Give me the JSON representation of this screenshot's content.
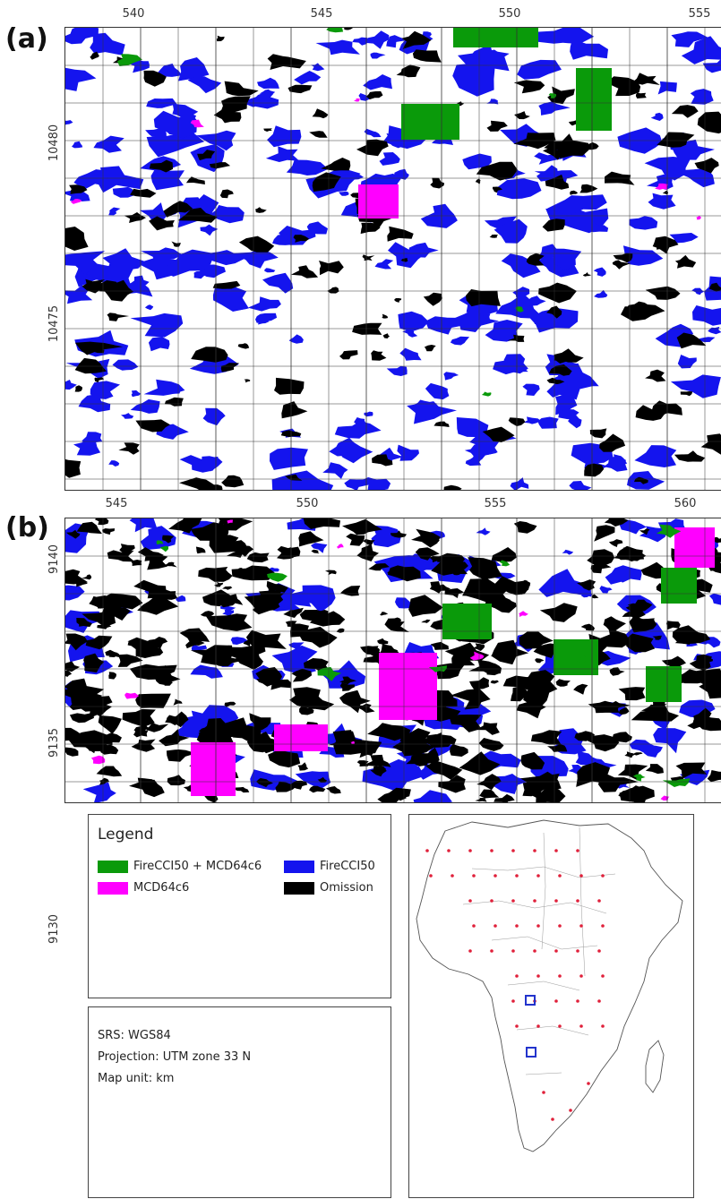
{
  "panels": [
    {
      "label": "(a)",
      "top_ticks": [
        "540",
        "545",
        "550",
        "555"
      ],
      "left_ticks": [
        "10480",
        "10475"
      ]
    },
    {
      "label": "(b)",
      "top_ticks": [
        "545",
        "550",
        "555",
        "560"
      ],
      "left_ticks": [
        "9140",
        "9135",
        "9130"
      ]
    }
  ],
  "legend": {
    "title": "Legend",
    "items": [
      {
        "label": "FireCCI50 + MCD64c6",
        "color": "#0a9a0a"
      },
      {
        "label": "FireCCI50",
        "color": "#1414ee"
      },
      {
        "label": "MCD64c6",
        "color": "#ff00ff"
      },
      {
        "label": "Omission",
        "color": "#000000"
      }
    ]
  },
  "srs": {
    "line1": "SRS: WGS84",
    "line2": "Projection: UTM zone 33 N",
    "line3": "Map unit: km"
  },
  "colors": {
    "both": "#0a9a0a",
    "firecci": "#1414ee",
    "mcd": "#ff00ff",
    "omission": "#000000",
    "sample_points": "#e0203a",
    "study_site_box": "#2233cc"
  }
}
